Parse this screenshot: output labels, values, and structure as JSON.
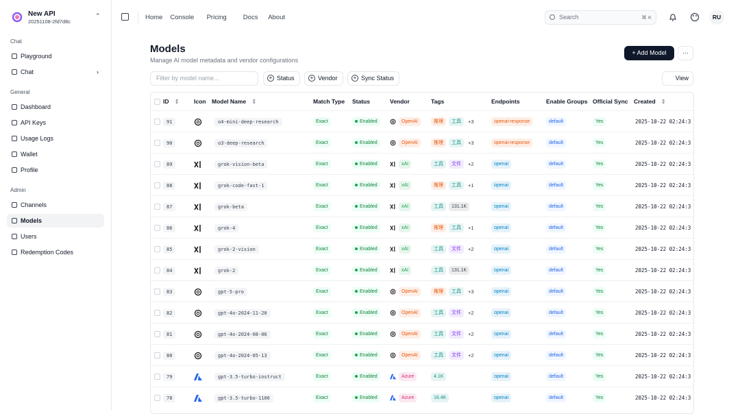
{
  "sidebar": {
    "brand": "New API",
    "version": "20251108-2fd7d8c",
    "groups": [
      {
        "label": "Chat",
        "items": [
          {
            "label": "Playground"
          },
          {
            "label": "Chat",
            "submenu": true
          }
        ]
      },
      {
        "label": "General",
        "items": [
          {
            "label": "Dashboard"
          },
          {
            "label": "API Keys"
          },
          {
            "label": "Usage Logs"
          },
          {
            "label": "Wallet"
          },
          {
            "label": "Profile"
          }
        ]
      },
      {
        "label": "Admin",
        "items": [
          {
            "label": "Channels"
          },
          {
            "label": "Models",
            "active": true
          },
          {
            "label": "Users"
          },
          {
            "label": "Redemption Codes"
          }
        ]
      }
    ]
  },
  "topbar": {
    "nav": [
      "Home",
      "Console",
      "Pricing",
      "Docs",
      "About"
    ],
    "search": "Search",
    "shortcut": "⌘ K",
    "avatar": "RU"
  },
  "header": {
    "title": "Models",
    "subtitle": "Manage AI model metadata and vendor configurations",
    "add_button": "Add Model"
  },
  "filters": {
    "placeholder": "Filter by model name...",
    "buttons": [
      "Status",
      "Vendor",
      "Sync Status"
    ],
    "view": "View"
  },
  "table": {
    "columns": [
      "ID",
      "Icon",
      "Model Name",
      "Match Type",
      "Status",
      "Vendor",
      "Tags",
      "Endpoints",
      "Enable Groups",
      "Official Sync",
      "Created"
    ],
    "rows": [
      {
        "id": 91,
        "name": "o4-mini-deep-research",
        "match": "Exact",
        "status": "Enabled",
        "vendor": "OpenAI",
        "vendor_color": "#ea580c",
        "tags": [
          {
            "label": "推理",
            "color": "#ea580c"
          },
          {
            "label": "工具",
            "color": "#0d9488"
          }
        ],
        "more": "+3",
        "endpoint": "openai-response",
        "endpoint_color": "#ea580c",
        "group": "default",
        "sync": "Yes",
        "created": "2025-10-22 02:24:3"
      },
      {
        "id": 90,
        "name": "o3-deep-research",
        "match": "Exact",
        "status": "Enabled",
        "vendor": "OpenAI",
        "vendor_color": "#ea580c",
        "tags": [
          {
            "label": "推理",
            "color": "#ea580c"
          },
          {
            "label": "工具",
            "color": "#0d9488"
          }
        ],
        "more": "+3",
        "endpoint": "openai-response",
        "endpoint_color": "#ea580c",
        "group": "default",
        "sync": "Yes",
        "created": "2025-10-22 02:24:3"
      },
      {
        "id": 89,
        "name": "grok-vision-beta",
        "match": "Exact",
        "status": "Enabled",
        "vendor": "xAI",
        "vendor_color": "#16a34a",
        "tags": [
          {
            "label": "工具",
            "color": "#0d9488"
          },
          {
            "label": "文件",
            "color": "#7c3aed"
          }
        ],
        "more": "+2",
        "endpoint": "openai",
        "endpoint_color": "#0284c7",
        "group": "default",
        "sync": "Yes",
        "created": "2025-10-22 02:24:3"
      },
      {
        "id": 88,
        "name": "grok-code-fast-1",
        "match": "Exact",
        "status": "Enabled",
        "vendor": "xAI",
        "vendor_color": "#16a34a",
        "tags": [
          {
            "label": "推理",
            "color": "#ea580c"
          },
          {
            "label": "工具",
            "color": "#0d9488"
          }
        ],
        "more": "+1",
        "endpoint": "openai",
        "endpoint_color": "#0284c7",
        "group": "default",
        "sync": "Yes",
        "created": "2025-10-22 02:24:3"
      },
      {
        "id": 87,
        "name": "grok-beta",
        "match": "Exact",
        "status": "Enabled",
        "vendor": "xAI",
        "vendor_color": "#16a34a",
        "tags": [
          {
            "label": "工具",
            "color": "#0d9488"
          },
          {
            "label": "131.1K",
            "color": "#374151"
          }
        ],
        "endpoint": "openai",
        "endpoint_color": "#0284c7",
        "group": "default",
        "sync": "Yes",
        "created": "2025-10-22 02:24:3"
      },
      {
        "id": 86,
        "name": "grok-4",
        "match": "Exact",
        "status": "Enabled",
        "vendor": "xAI",
        "vendor_color": "#16a34a",
        "tags": [
          {
            "label": "推理",
            "color": "#ea580c"
          },
          {
            "label": "工具",
            "color": "#0d9488"
          }
        ],
        "more": "+1",
        "endpoint": "openai",
        "endpoint_color": "#0284c7",
        "group": "default",
        "sync": "Yes",
        "created": "2025-10-22 02:24:3"
      },
      {
        "id": 85,
        "name": "grok-2-vision",
        "match": "Exact",
        "status": "Enabled",
        "vendor": "xAI",
        "vendor_color": "#16a34a",
        "tags": [
          {
            "label": "工具",
            "color": "#0d9488"
          },
          {
            "label": "文件",
            "color": "#7c3aed"
          }
        ],
        "more": "+2",
        "endpoint": "openai",
        "endpoint_color": "#0284c7",
        "group": "default",
        "sync": "Yes",
        "created": "2025-10-22 02:24:3"
      },
      {
        "id": 84,
        "name": "grok-2",
        "match": "Exact",
        "status": "Enabled",
        "vendor": "xAI",
        "vendor_color": "#16a34a",
        "tags": [
          {
            "label": "工具",
            "color": "#0d9488"
          },
          {
            "label": "131.1K",
            "color": "#374151"
          }
        ],
        "endpoint": "openai",
        "endpoint_color": "#0284c7",
        "group": "default",
        "sync": "Yes",
        "created": "2025-10-22 02:24:3"
      },
      {
        "id": 83,
        "name": "gpt-5-pro",
        "match": "Exact",
        "status": "Enabled",
        "vendor": "OpenAI",
        "vendor_color": "#ea580c",
        "tags": [
          {
            "label": "推理",
            "color": "#ea580c"
          },
          {
            "label": "工具",
            "color": "#0d9488"
          }
        ],
        "more": "+3",
        "endpoint": "openai",
        "endpoint_color": "#0284c7",
        "group": "default",
        "sync": "Yes",
        "created": "2025-10-22 02:24:3"
      },
      {
        "id": 82,
        "name": "gpt-4o-2024-11-20",
        "match": "Exact",
        "status": "Enabled",
        "vendor": "OpenAI",
        "vendor_color": "#ea580c",
        "tags": [
          {
            "label": "工具",
            "color": "#0d9488"
          },
          {
            "label": "文件",
            "color": "#7c3aed"
          }
        ],
        "more": "+2",
        "endpoint": "openai",
        "endpoint_color": "#0284c7",
        "group": "default",
        "sync": "Yes",
        "created": "2025-10-22 02:24:3"
      },
      {
        "id": 81,
        "name": "gpt-4o-2024-08-06",
        "match": "Exact",
        "status": "Enabled",
        "vendor": "OpenAI",
        "vendor_color": "#ea580c",
        "tags": [
          {
            "label": "工具",
            "color": "#0d9488"
          },
          {
            "label": "文件",
            "color": "#7c3aed"
          }
        ],
        "more": "+2",
        "endpoint": "openai",
        "endpoint_color": "#0284c7",
        "group": "default",
        "sync": "Yes",
        "created": "2025-10-22 02:24:3"
      },
      {
        "id": 80,
        "name": "gpt-4o-2024-05-13",
        "match": "Exact",
        "status": "Enabled",
        "vendor": "OpenAI",
        "vendor_color": "#ea580c",
        "tags": [
          {
            "label": "工具",
            "color": "#0d9488"
          },
          {
            "label": "文件",
            "color": "#7c3aed"
          }
        ],
        "more": "+2",
        "endpoint": "openai",
        "endpoint_color": "#0284c7",
        "group": "default",
        "sync": "Yes",
        "created": "2025-10-22 02:24:3"
      },
      {
        "id": 79,
        "name": "gpt-3.5-turbo-instruct",
        "match": "Exact",
        "status": "Enabled",
        "vendor": "Azure",
        "vendor_color": "#db2777",
        "tags": [
          {
            "label": "4.1K",
            "color": "#0d9488"
          }
        ],
        "endpoint": "openai",
        "endpoint_color": "#0284c7",
        "group": "default",
        "sync": "Yes",
        "created": "2025-10-22 02:24:3"
      },
      {
        "id": 78,
        "name": "gpt-3.5-turbo-1106",
        "match": "Exact",
        "status": "Enabled",
        "vendor": "Azure",
        "vendor_color": "#db2777",
        "tags": [
          {
            "label": "16.4K",
            "color": "#0d9488"
          }
        ],
        "endpoint": "openai",
        "endpoint_color": "#0284c7",
        "group": "default",
        "sync": "Yes",
        "created": "2025-10-22 02:24:3"
      }
    ]
  }
}
